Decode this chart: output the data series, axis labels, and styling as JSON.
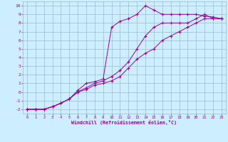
{
  "xlabel": "Windchill (Refroidissement éolien,°C)",
  "bg_color": "#cceeff",
  "grid_color": "#99bbcc",
  "line_color": "#990099",
  "xlim": [
    -0.5,
    23.5
  ],
  "ylim": [
    -2.5,
    10.5
  ],
  "xticks": [
    0,
    1,
    2,
    3,
    4,
    5,
    6,
    7,
    8,
    9,
    10,
    11,
    12,
    13,
    14,
    15,
    16,
    17,
    18,
    19,
    20,
    21,
    22,
    23
  ],
  "yticks": [
    -2,
    -1,
    0,
    1,
    2,
    3,
    4,
    5,
    6,
    7,
    8,
    9,
    10
  ],
  "line1_x": [
    0,
    1,
    2,
    3,
    4,
    5,
    6,
    7,
    8,
    9,
    10,
    11,
    12,
    13,
    14,
    15,
    16,
    17,
    18,
    19,
    20,
    21,
    22,
    23
  ],
  "line1_y": [
    -2,
    -2,
    -2,
    -1.7,
    -1.3,
    -0.8,
    0.2,
    1.0,
    1.2,
    1.5,
    7.5,
    8.2,
    8.5,
    9.0,
    10.0,
    9.5,
    9.0,
    9.0,
    9.0,
    9.0,
    9.0,
    8.8,
    8.7,
    8.5
  ],
  "line2_x": [
    0,
    1,
    2,
    3,
    4,
    5,
    6,
    7,
    8,
    9,
    10,
    11,
    12,
    13,
    14,
    15,
    16,
    17,
    18,
    19,
    20,
    21,
    22,
    23
  ],
  "line2_y": [
    -2,
    -2,
    -2,
    -1.7,
    -1.3,
    -0.8,
    0.0,
    0.5,
    1.0,
    1.3,
    1.8,
    2.5,
    3.5,
    5.0,
    6.5,
    7.5,
    8.0,
    8.0,
    8.0,
    8.0,
    8.5,
    9.0,
    8.5,
    8.5
  ],
  "line3_x": [
    0,
    1,
    2,
    3,
    4,
    5,
    6,
    7,
    8,
    9,
    10,
    11,
    12,
    13,
    14,
    15,
    16,
    17,
    18,
    19,
    20,
    21,
    22,
    23
  ],
  "line3_y": [
    -2,
    -2,
    -2,
    -1.7,
    -1.3,
    -0.8,
    0.0,
    0.3,
    0.8,
    1.0,
    1.3,
    1.8,
    2.8,
    3.8,
    4.5,
    5.0,
    6.0,
    6.5,
    7.0,
    7.5,
    8.0,
    8.5,
    8.5,
    8.5
  ]
}
